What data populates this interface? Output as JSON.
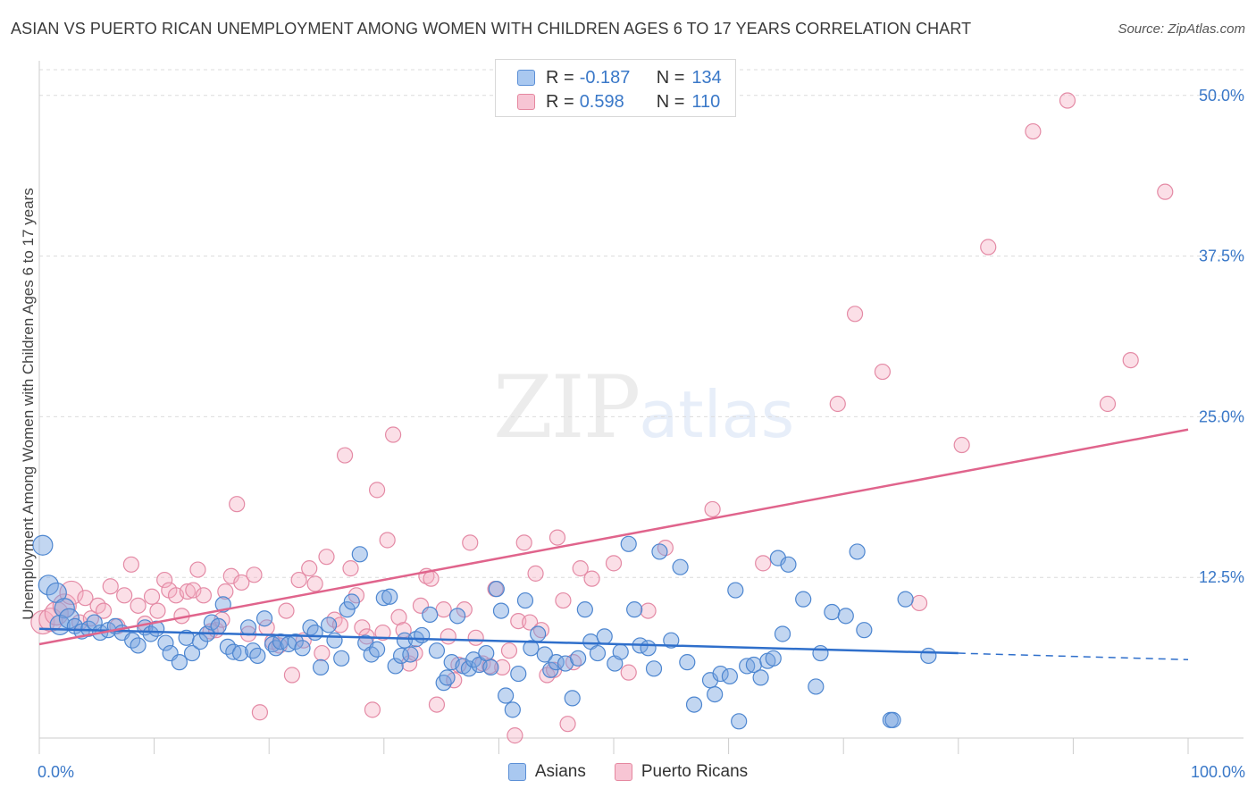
{
  "title": "ASIAN VS PUERTO RICAN UNEMPLOYMENT AMONG WOMEN WITH CHILDREN AGES 6 TO 17 YEARS CORRELATION CHART",
  "source": "Source: ZipAtlas.com",
  "watermark": {
    "zip": "ZIP",
    "atlas": "atlas"
  },
  "legend": {
    "rows": [
      {
        "r_label": "R =",
        "r_value": "-0.187",
        "n_label": "N =",
        "n_value": "134",
        "color": "#a9c8f0",
        "border": "#5b8fd6"
      },
      {
        "r_label": "R =",
        "r_value": "0.598",
        "n_label": "N =",
        "n_value": "110",
        "color": "#f7c5d4",
        "border": "#e5879f"
      }
    ]
  },
  "colors": {
    "asian_fill": "rgba(120,165,225,0.45)",
    "asian_stroke": "#4d86d0",
    "asian_line": "#2f6fcb",
    "pr_fill": "rgba(245,175,195,0.40)",
    "pr_stroke": "#e48aa5",
    "pr_line": "#e0648c",
    "grid": "#dcdcdc",
    "axis_label": "#3a78c8"
  },
  "chart_data": {
    "type": "scatter",
    "title": "ASIAN VS PUERTO RICAN UNEMPLOYMENT AMONG WOMEN WITH CHILDREN AGES 6 TO 17 YEARS CORRELATION CHART",
    "xlabel": "",
    "ylabel": "Unemployment Among Women with Children Ages 6 to 17 years",
    "xlim": [
      0,
      100
    ],
    "ylim": [
      0,
      52
    ],
    "x_tick_labels": [
      {
        "value": 0,
        "label": "0.0%"
      },
      {
        "value": 100,
        "label": "100.0%"
      }
    ],
    "y_ticks": [
      {
        "value": 12.5,
        "label": "12.5%"
      },
      {
        "value": 25,
        "label": "25.0%"
      },
      {
        "value": 37.5,
        "label": "37.5%"
      },
      {
        "value": 50,
        "label": "50.0%"
      }
    ],
    "grid": true,
    "legend_position": "bottom-center",
    "series": [
      {
        "name": "Asians",
        "r": -0.187,
        "n": 134,
        "trend": {
          "x0": 0,
          "y0": 8.5,
          "x1": 80,
          "y1": 6.6,
          "dashed_to_x": 100,
          "dashed_to_y": 6.1
        },
        "points": [
          [
            0.3,
            15.0
          ],
          [
            0.8,
            11.9
          ],
          [
            1.5,
            11.3
          ],
          [
            2.2,
            10.1
          ],
          [
            1.8,
            8.8
          ],
          [
            2.6,
            9.3
          ],
          [
            3.1,
            8.7
          ],
          [
            3.7,
            8.3
          ],
          [
            4.3,
            8.5
          ],
          [
            4.8,
            9.0
          ],
          [
            5.3,
            8.2
          ],
          [
            6.0,
            8.4
          ],
          [
            6.6,
            8.7
          ],
          [
            7.2,
            8.2
          ],
          [
            8.1,
            7.6
          ],
          [
            8.6,
            7.2
          ],
          [
            9.2,
            8.6
          ],
          [
            9.7,
            8.1
          ],
          [
            10.2,
            8.5
          ],
          [
            11.0,
            7.4
          ],
          [
            11.4,
            6.6
          ],
          [
            12.2,
            5.9
          ],
          [
            12.8,
            7.8
          ],
          [
            13.3,
            6.6
          ],
          [
            14.0,
            7.5
          ],
          [
            14.6,
            8.1
          ],
          [
            15.0,
            9.0
          ],
          [
            15.6,
            8.7
          ],
          [
            16.0,
            10.4
          ],
          [
            16.4,
            7.1
          ],
          [
            16.9,
            6.7
          ],
          [
            17.5,
            6.6
          ],
          [
            18.2,
            8.6
          ],
          [
            18.6,
            6.8
          ],
          [
            19.0,
            6.4
          ],
          [
            19.6,
            9.3
          ],
          [
            20.3,
            7.3
          ],
          [
            20.6,
            7.0
          ],
          [
            21.0,
            7.5
          ],
          [
            21.7,
            7.3
          ],
          [
            22.3,
            7.5
          ],
          [
            22.9,
            7.0
          ],
          [
            23.6,
            8.6
          ],
          [
            24.0,
            8.2
          ],
          [
            24.5,
            5.5
          ],
          [
            25.2,
            8.8
          ],
          [
            25.7,
            7.6
          ],
          [
            26.3,
            6.2
          ],
          [
            26.8,
            10.0
          ],
          [
            27.2,
            10.6
          ],
          [
            27.9,
            14.3
          ],
          [
            28.4,
            7.4
          ],
          [
            28.9,
            6.5
          ],
          [
            29.4,
            6.9
          ],
          [
            30.0,
            10.9
          ],
          [
            30.5,
            11.0
          ],
          [
            31.0,
            5.6
          ],
          [
            31.5,
            6.4
          ],
          [
            31.8,
            7.6
          ],
          [
            32.3,
            6.5
          ],
          [
            32.8,
            7.7
          ],
          [
            33.3,
            8.0
          ],
          [
            34.0,
            9.6
          ],
          [
            34.6,
            6.8
          ],
          [
            35.2,
            4.3
          ],
          [
            35.5,
            4.7
          ],
          [
            35.9,
            5.9
          ],
          [
            36.4,
            9.5
          ],
          [
            36.9,
            5.6
          ],
          [
            37.4,
            5.4
          ],
          [
            37.8,
            6.1
          ],
          [
            38.3,
            5.7
          ],
          [
            38.9,
            6.6
          ],
          [
            39.3,
            5.5
          ],
          [
            39.8,
            11.6
          ],
          [
            40.2,
            9.9
          ],
          [
            40.6,
            3.3
          ],
          [
            41.2,
            2.2
          ],
          [
            41.7,
            5.0
          ],
          [
            42.3,
            10.7
          ],
          [
            42.8,
            7.0
          ],
          [
            43.4,
            8.1
          ],
          [
            44.0,
            6.5
          ],
          [
            44.5,
            5.3
          ],
          [
            45.0,
            5.9
          ],
          [
            45.8,
            5.8
          ],
          [
            46.4,
            3.1
          ],
          [
            46.9,
            6.2
          ],
          [
            47.5,
            10.0
          ],
          [
            48.0,
            7.5
          ],
          [
            48.6,
            6.6
          ],
          [
            49.2,
            7.9
          ],
          [
            50.1,
            5.8
          ],
          [
            50.6,
            6.7
          ],
          [
            51.3,
            15.1
          ],
          [
            51.8,
            10.0
          ],
          [
            52.3,
            7.2
          ],
          [
            53.0,
            7.0
          ],
          [
            53.5,
            5.4
          ],
          [
            54.0,
            14.5
          ],
          [
            55.0,
            7.6
          ],
          [
            55.8,
            13.3
          ],
          [
            56.4,
            5.9
          ],
          [
            57.0,
            2.6
          ],
          [
            58.4,
            4.5
          ],
          [
            58.8,
            3.4
          ],
          [
            59.3,
            5.0
          ],
          [
            60.1,
            4.8
          ],
          [
            60.6,
            11.5
          ],
          [
            60.9,
            1.3
          ],
          [
            61.6,
            5.6
          ],
          [
            62.2,
            5.7
          ],
          [
            62.8,
            4.7
          ],
          [
            63.4,
            6.0
          ],
          [
            63.9,
            6.2
          ],
          [
            64.3,
            14.0
          ],
          [
            64.7,
            8.1
          ],
          [
            65.2,
            13.5
          ],
          [
            66.5,
            10.8
          ],
          [
            67.6,
            4.0
          ],
          [
            68.0,
            6.6
          ],
          [
            69.0,
            9.8
          ],
          [
            70.2,
            9.5
          ],
          [
            71.2,
            14.5
          ],
          [
            71.8,
            8.4
          ],
          [
            74.1,
            1.4
          ],
          [
            74.3,
            1.4
          ],
          [
            75.4,
            10.8
          ],
          [
            77.4,
            6.4
          ]
        ]
      },
      {
        "name": "Puerto Ricans",
        "r": 0.598,
        "n": 110,
        "trend": {
          "x0": 0,
          "y0": 7.3,
          "x1": 100,
          "y1": 24.0
        },
        "points": [
          [
            0.3,
            9.0
          ],
          [
            1.0,
            9.2
          ],
          [
            1.5,
            9.7
          ],
          [
            2.2,
            10.3
          ],
          [
            2.8,
            11.3
          ],
          [
            3.5,
            9.0
          ],
          [
            4.0,
            10.9
          ],
          [
            4.5,
            9.3
          ],
          [
            5.1,
            10.3
          ],
          [
            5.6,
            9.9
          ],
          [
            6.2,
            11.8
          ],
          [
            6.8,
            8.7
          ],
          [
            7.4,
            11.1
          ],
          [
            8.0,
            13.5
          ],
          [
            8.6,
            10.3
          ],
          [
            9.2,
            8.9
          ],
          [
            9.8,
            11.0
          ],
          [
            10.3,
            9.9
          ],
          [
            10.9,
            12.3
          ],
          [
            11.3,
            11.5
          ],
          [
            11.9,
            11.1
          ],
          [
            12.4,
            9.5
          ],
          [
            12.9,
            11.4
          ],
          [
            13.4,
            11.5
          ],
          [
            13.8,
            13.1
          ],
          [
            14.3,
            11.1
          ],
          [
            14.9,
            8.3
          ],
          [
            15.4,
            8.4
          ],
          [
            15.9,
            9.2
          ],
          [
            16.2,
            11.4
          ],
          [
            16.7,
            12.6
          ],
          [
            17.2,
            18.2
          ],
          [
            17.6,
            12.1
          ],
          [
            18.2,
            8.1
          ],
          [
            18.7,
            12.7
          ],
          [
            19.2,
            2.0
          ],
          [
            19.8,
            8.6
          ],
          [
            20.3,
            7.5
          ],
          [
            20.9,
            7.2
          ],
          [
            21.5,
            9.9
          ],
          [
            22.0,
            4.9
          ],
          [
            22.6,
            12.3
          ],
          [
            23.0,
            7.6
          ],
          [
            23.5,
            13.2
          ],
          [
            24.0,
            12.0
          ],
          [
            24.6,
            6.6
          ],
          [
            25.0,
            14.1
          ],
          [
            25.7,
            9.2
          ],
          [
            26.2,
            8.8
          ],
          [
            26.6,
            22.0
          ],
          [
            27.1,
            13.2
          ],
          [
            27.6,
            11.1
          ],
          [
            28.1,
            8.6
          ],
          [
            28.5,
            7.9
          ],
          [
            29.0,
            2.2
          ],
          [
            29.4,
            19.3
          ],
          [
            29.9,
            8.2
          ],
          [
            30.3,
            15.4
          ],
          [
            30.8,
            23.6
          ],
          [
            31.3,
            9.4
          ],
          [
            31.7,
            8.4
          ],
          [
            32.2,
            5.8
          ],
          [
            32.7,
            6.6
          ],
          [
            33.2,
            10.3
          ],
          [
            33.7,
            12.6
          ],
          [
            34.1,
            12.4
          ],
          [
            34.6,
            2.6
          ],
          [
            35.2,
            10.0
          ],
          [
            35.6,
            7.9
          ],
          [
            36.1,
            4.5
          ],
          [
            36.5,
            5.7
          ],
          [
            37.0,
            10.0
          ],
          [
            37.5,
            15.2
          ],
          [
            38.0,
            7.8
          ],
          [
            38.6,
            5.8
          ],
          [
            39.2,
            5.6
          ],
          [
            39.7,
            11.6
          ],
          [
            40.3,
            5.5
          ],
          [
            40.9,
            6.8
          ],
          [
            41.4,
            0.2
          ],
          [
            41.7,
            9.1
          ],
          [
            42.2,
            15.2
          ],
          [
            42.7,
            9.0
          ],
          [
            43.2,
            12.8
          ],
          [
            43.7,
            8.4
          ],
          [
            44.2,
            4.9
          ],
          [
            44.8,
            5.3
          ],
          [
            45.1,
            15.6
          ],
          [
            45.6,
            10.7
          ],
          [
            46.0,
            1.1
          ],
          [
            46.5,
            5.9
          ],
          [
            47.1,
            13.2
          ],
          [
            48.1,
            12.4
          ],
          [
            50.0,
            13.6
          ],
          [
            51.3,
            5.1
          ],
          [
            53.0,
            9.9
          ],
          [
            54.5,
            14.8
          ],
          [
            58.6,
            17.8
          ],
          [
            63.0,
            13.6
          ],
          [
            69.5,
            26.0
          ],
          [
            71.0,
            33.0
          ],
          [
            73.4,
            28.5
          ],
          [
            76.6,
            10.5
          ],
          [
            80.3,
            22.8
          ],
          [
            82.6,
            38.2
          ],
          [
            86.5,
            47.2
          ],
          [
            89.5,
            49.6
          ],
          [
            93.0,
            26.0
          ],
          [
            95.0,
            29.4
          ],
          [
            98.0,
            42.5
          ]
        ]
      }
    ]
  },
  "bottom_legend": {
    "asians": "Asians",
    "puerto_ricans": "Puerto Ricans"
  }
}
